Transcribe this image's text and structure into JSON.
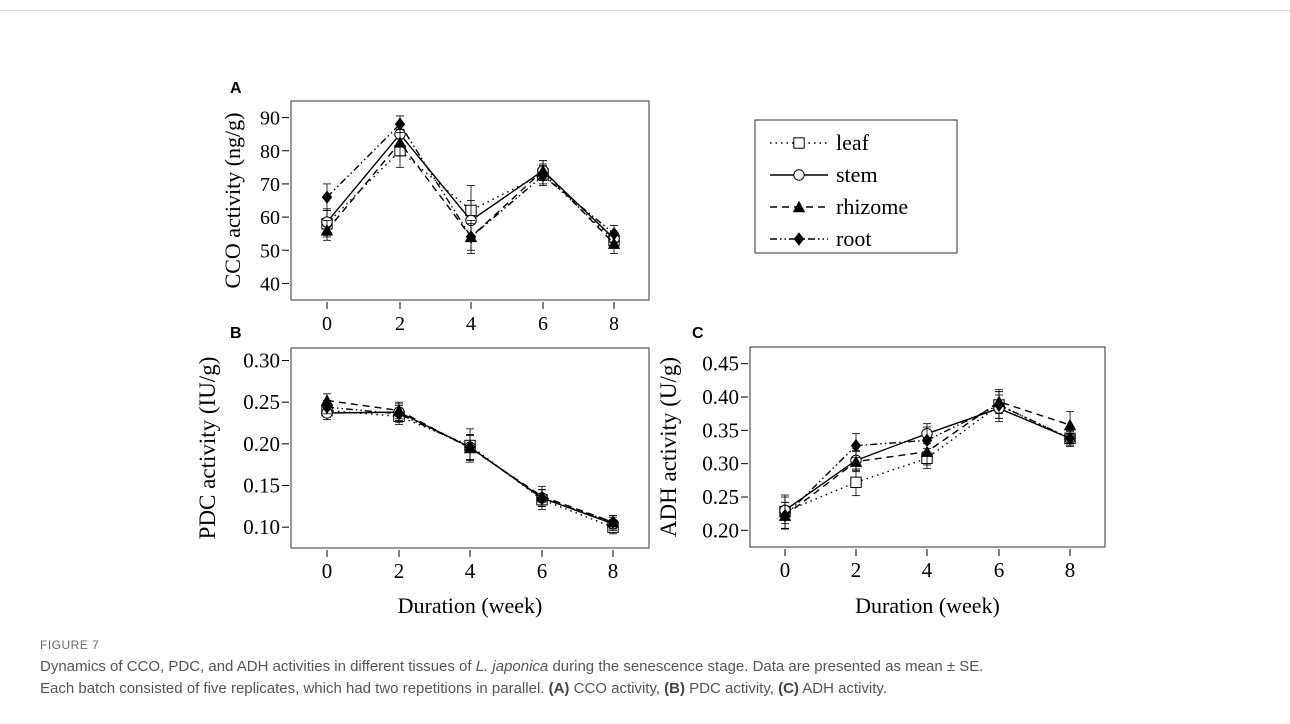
{
  "chart_data": [
    {
      "panel": "A",
      "type": "line",
      "ylabel": "CCO activity (ng/g)",
      "xlabel": "",
      "x": [
        0,
        2,
        4,
        6,
        8
      ],
      "xlim": [
        -1,
        9
      ],
      "ylim": [
        35,
        95
      ],
      "yticks": [
        40,
        50,
        60,
        70,
        80,
        90
      ],
      "ytick_labels": [
        "40",
        "50",
        "60",
        "70",
        "80",
        "90"
      ],
      "xtick_labels": [
        "0",
        "2",
        "4",
        "6",
        "8"
      ],
      "grid": false,
      "series": [
        {
          "name": "leaf",
          "values": [
            58,
            80,
            62,
            73,
            53
          ],
          "errors": [
            4,
            5,
            7.5,
            3,
            2
          ],
          "marker": "square-open",
          "dash": "dot"
        },
        {
          "name": "stem",
          "values": [
            58.5,
            85,
            59,
            74,
            53.5
          ],
          "errors": [
            4,
            3,
            6,
            3,
            2
          ],
          "marker": "circle-open",
          "dash": "solid"
        },
        {
          "name": "rhizome",
          "values": [
            56,
            82.5,
            54,
            74,
            52
          ],
          "errors": [
            3,
            4,
            5,
            3,
            3
          ],
          "marker": "triangle",
          "dash": "dash"
        },
        {
          "name": "root",
          "values": [
            66,
            88,
            54,
            72.5,
            55
          ],
          "errors": [
            4,
            2.5,
            4,
            3,
            2.5
          ],
          "marker": "diamond",
          "dash": "dashdotdot"
        }
      ]
    },
    {
      "panel": "B",
      "type": "line",
      "ylabel": "PDC activity (IU/g)",
      "xlabel": "Duration (week)",
      "x": [
        0,
        2,
        4,
        6,
        8
      ],
      "xlim": [
        -1,
        9
      ],
      "ylim": [
        0.075,
        0.315
      ],
      "yticks": [
        0.1,
        0.15,
        0.2,
        0.25,
        0.3
      ],
      "ytick_labels": [
        "0.10",
        "0.15",
        "0.20",
        "0.25",
        "0.30"
      ],
      "xtick_labels": [
        "0",
        "2",
        "4",
        "6",
        "8"
      ],
      "grid": false,
      "series": [
        {
          "name": "leaf",
          "values": [
            0.24,
            0.233,
            0.198,
            0.133,
            0.1
          ],
          "errors": [
            0.008,
            0.01,
            0.02,
            0.012,
            0.008
          ],
          "marker": "square-open",
          "dash": "dot"
        },
        {
          "name": "stem",
          "values": [
            0.237,
            0.238,
            0.196,
            0.135,
            0.104
          ],
          "errors": [
            0.008,
            0.01,
            0.015,
            0.01,
            0.008
          ],
          "marker": "circle-open",
          "dash": "solid"
        },
        {
          "name": "rhizome",
          "values": [
            0.252,
            0.24,
            0.195,
            0.137,
            0.106
          ],
          "errors": [
            0.008,
            0.01,
            0.015,
            0.012,
            0.008
          ],
          "marker": "triangle",
          "dash": "dash"
        },
        {
          "name": "root",
          "values": [
            0.244,
            0.236,
            0.196,
            0.135,
            0.106
          ],
          "errors": [
            0.008,
            0.01,
            0.015,
            0.01,
            0.008
          ],
          "marker": "diamond",
          "dash": "dashdotdot"
        }
      ]
    },
    {
      "panel": "C",
      "type": "line",
      "ylabel": "ADH activity (U/g)",
      "xlabel": "Duration (week)",
      "x": [
        0,
        2,
        4,
        6,
        8
      ],
      "xlim": [
        -1,
        9
      ],
      "ylim": [
        0.175,
        0.475
      ],
      "yticks": [
        0.2,
        0.25,
        0.3,
        0.35,
        0.4,
        0.45
      ],
      "ytick_labels": [
        "0.20",
        "0.25",
        "0.30",
        "0.35",
        "0.40",
        "0.45"
      ],
      "xtick_labels": [
        "0",
        "2",
        "4",
        "6",
        "8"
      ],
      "grid": false,
      "series": [
        {
          "name": "leaf",
          "values": [
            0.228,
            0.272,
            0.308,
            0.388,
            0.338
          ],
          "errors": [
            0.025,
            0.02,
            0.015,
            0.02,
            0.012
          ],
          "marker": "square-open",
          "dash": "dot"
        },
        {
          "name": "stem",
          "values": [
            0.23,
            0.305,
            0.345,
            0.383,
            0.338
          ],
          "errors": [
            0.02,
            0.015,
            0.015,
            0.02,
            0.01
          ],
          "marker": "circle-open",
          "dash": "solid"
        },
        {
          "name": "rhizome",
          "values": [
            0.222,
            0.303,
            0.318,
            0.393,
            0.358
          ],
          "errors": [
            0.02,
            0.015,
            0.02,
            0.018,
            0.02
          ],
          "marker": "triangle",
          "dash": "dash"
        },
        {
          "name": "root",
          "values": [
            0.222,
            0.327,
            0.335,
            0.388,
            0.338
          ],
          "errors": [
            0.02,
            0.018,
            0.02,
            0.02,
            0.012
          ],
          "marker": "diamond",
          "dash": "dashdotdot"
        }
      ]
    }
  ],
  "legend": {
    "placement": "right of panel A",
    "items": [
      {
        "label": "leaf",
        "marker": "square-open",
        "dash": "dot"
      },
      {
        "label": "stem",
        "marker": "circle-open",
        "dash": "solid"
      },
      {
        "label": "rhizome",
        "marker": "triangle",
        "dash": "dash"
      },
      {
        "label": "root",
        "marker": "diamond",
        "dash": "dashdotdot"
      }
    ]
  },
  "caption": {
    "label": "FIGURE 7",
    "line1_a": "Dynamics of CCO, PDC, and ADH activities in different tissues of ",
    "species": "L. japonica",
    "line1_b": " during the senescence stage. Data are presented as mean ± SE.",
    "line2_a": "Each batch consisted of five replicates, which had two repetitions in parallel. ",
    "ref_a": "(A)",
    "text_a": " CCO activity, ",
    "ref_b": "(B)",
    "text_b": " PDC activity, ",
    "ref_c": "(C)",
    "text_c": " ADH activity."
  },
  "colors": {
    "ink": "#000000",
    "caption": "#555555",
    "caption_label": "#6b6b6b",
    "rule": "#d9d9d9"
  }
}
